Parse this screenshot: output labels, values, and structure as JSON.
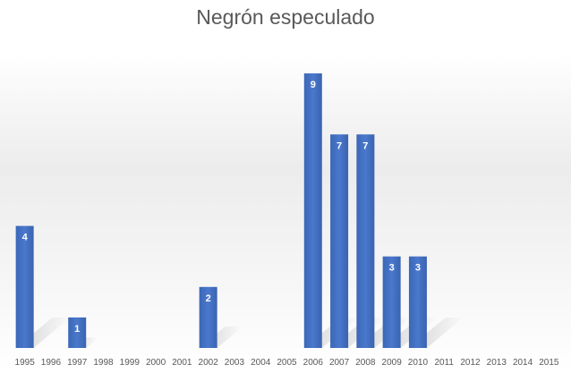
{
  "chart_data": {
    "type": "bar",
    "title": "Negrón especulado",
    "xlabel": "",
    "ylabel": "",
    "categories": [
      "1995",
      "1996",
      "1997",
      "1998",
      "1999",
      "2000",
      "2001",
      "2002",
      "2003",
      "2004",
      "2005",
      "2006",
      "2007",
      "2008",
      "2009",
      "2010",
      "2011",
      "2012",
      "2013",
      "2014",
      "2015"
    ],
    "values": [
      4,
      0,
      1,
      0,
      0,
      0,
      0,
      2,
      0,
      0,
      0,
      9,
      7,
      7,
      3,
      3,
      0,
      0,
      0,
      0,
      0
    ],
    "ylim": [
      0,
      9.5
    ],
    "grid": false,
    "legend": "none",
    "bar_color": "#4472c4",
    "data_labels": true
  }
}
